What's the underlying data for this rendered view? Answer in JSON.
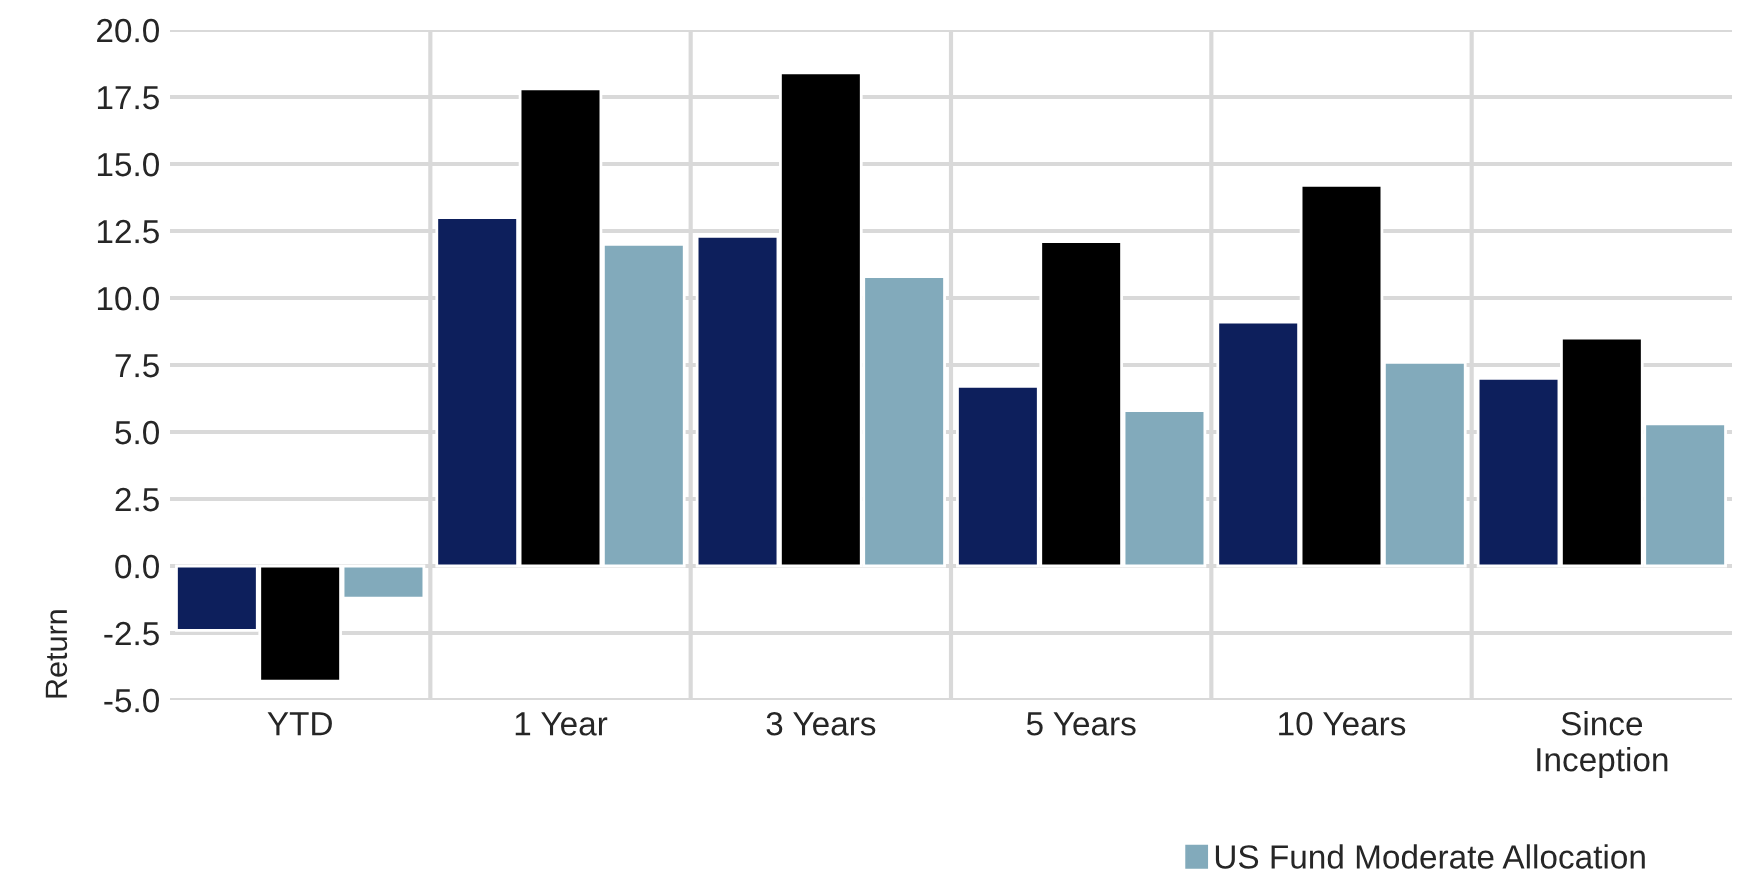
{
  "chart_data": {
    "type": "bar",
    "ylabel": "Return",
    "categories": [
      "YTD",
      "1 Year",
      "3 Years",
      "5 Years",
      "10 Years",
      "Since\nInception"
    ],
    "series": [
      {
        "color": "#0d1f5c",
        "values": [
          -2.4,
          13.0,
          12.3,
          6.7,
          9.1,
          7.0
        ]
      },
      {
        "color": "#000000",
        "values": [
          -4.3,
          17.8,
          18.4,
          12.1,
          14.2,
          8.5
        ]
      },
      {
        "name": "US Fund Moderate Allocation",
        "color": "#82aabb",
        "values": [
          -1.2,
          12.0,
          10.8,
          5.8,
          7.6,
          5.3
        ]
      }
    ],
    "ylim": [
      -5,
      20
    ],
    "yticks": [
      {
        "value": -5,
        "label": "-5.0"
      },
      {
        "value": -2.5,
        "label": "-2.5"
      },
      {
        "value": 0,
        "label": "0.0"
      },
      {
        "value": 2.5,
        "label": "2.5"
      },
      {
        "value": 5,
        "label": "5.0"
      },
      {
        "value": 7.5,
        "label": "7.5"
      },
      {
        "value": 10,
        "label": "10.0"
      },
      {
        "value": 12.5,
        "label": "12.5"
      },
      {
        "value": 15,
        "label": "15.0"
      },
      {
        "value": 17.5,
        "label": "17.5"
      },
      {
        "value": 20,
        "label": "20.0"
      }
    ],
    "grid": true,
    "legend": "bottom"
  }
}
